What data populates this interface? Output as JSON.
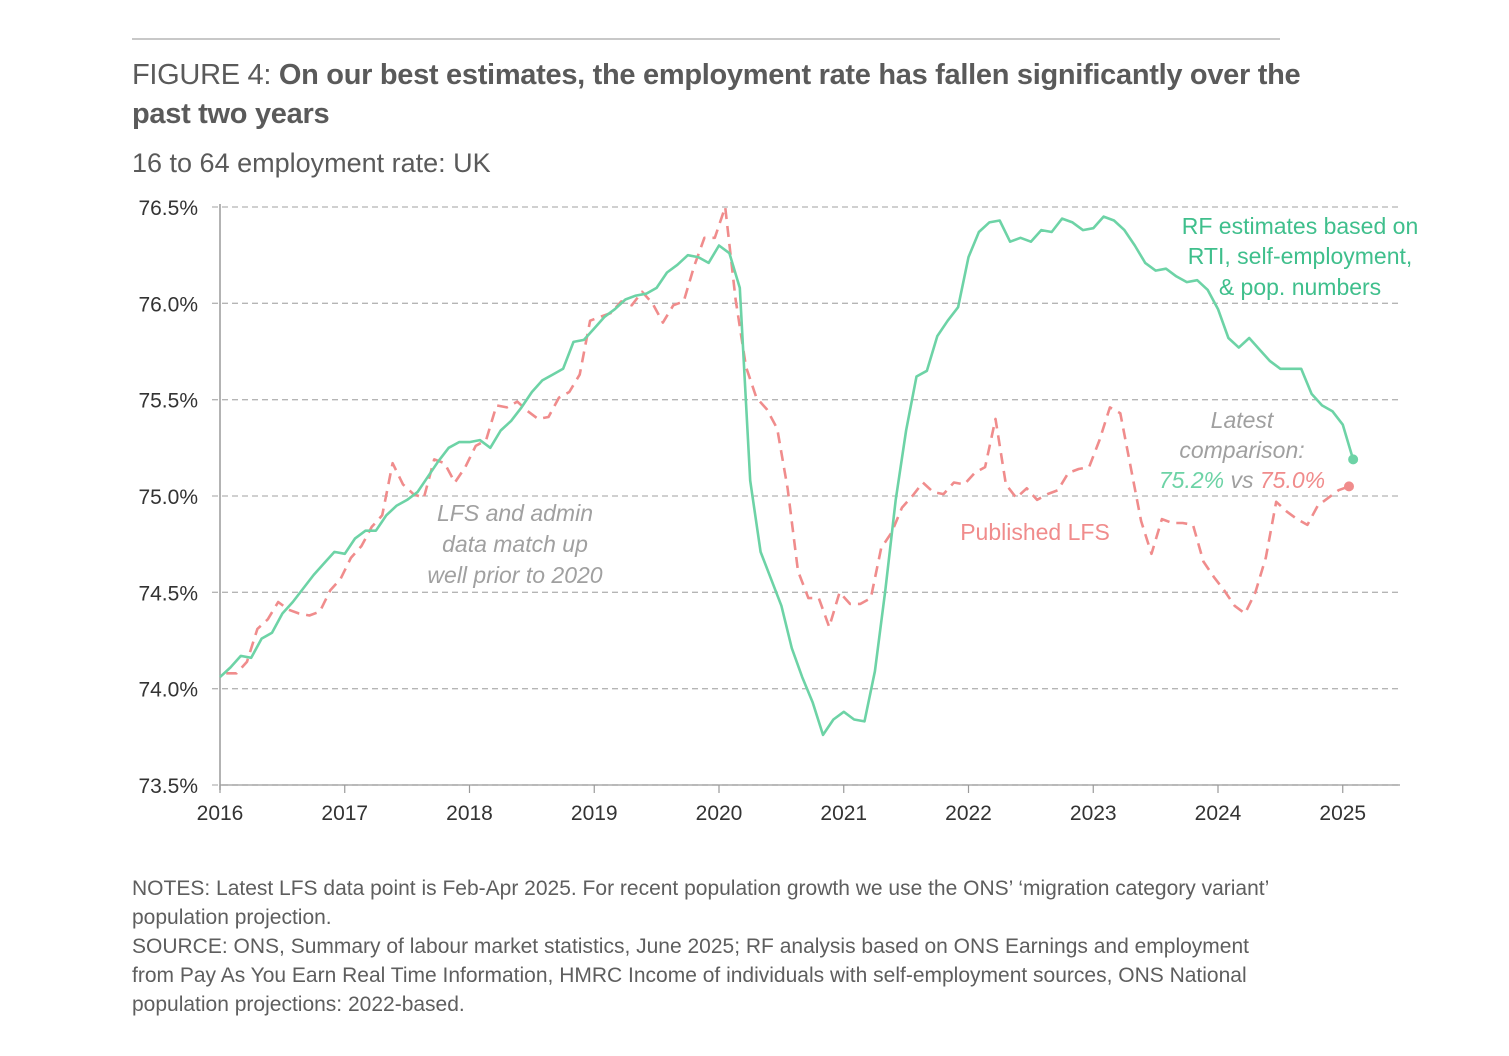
{
  "header": {
    "figure_prefix": "FIGURE 4: ",
    "title": "On our best estimates, the employment rate has fallen significantly over the past two years",
    "subtitle": "16 to 64 employment rate: UK"
  },
  "footer": {
    "notes": "NOTES: Latest LFS data point is Feb-Apr 2025. For recent population growth we use the ONS’ ‘migration category variant’ population projection.",
    "source": "SOURCE: ONS, Summary of labour market statistics, June 2025; RF analysis based on ONS Earnings and employment from Pay As You Earn Real Time Information, HMRC Income of individuals with self-employment sources, ONS National population projections: 2022-based."
  },
  "chart_data": {
    "type": "line",
    "title": "16 to 64 employment rate: UK",
    "xlabel": "",
    "ylabel": "",
    "xlim": [
      2016,
      2025.5
    ],
    "ylim": [
      73.5,
      76.5
    ],
    "x_ticks": [
      2016,
      2017,
      2018,
      2019,
      2020,
      2021,
      2022,
      2023,
      2024,
      2025
    ],
    "x_tick_labels": [
      "2016",
      "2017",
      "2018",
      "2019",
      "2020",
      "2021",
      "2022",
      "2023",
      "2024",
      "2025"
    ],
    "y_ticks": [
      73.5,
      74.0,
      74.5,
      75.0,
      75.5,
      76.0,
      76.5
    ],
    "y_tick_labels": [
      "73.5%",
      "74.0%",
      "74.5%",
      "75.0%",
      "75.5%",
      "76.0%",
      "76.5%"
    ],
    "grid": "horizontal-dashed",
    "colors": {
      "rf": "#6dd3a6",
      "lfs": "#f08c8c",
      "rf_text": "#3fbf8c",
      "annotation": "#a0a0a0",
      "axis": "#9a9a9a",
      "grid": "#b5b5b5"
    },
    "series": [
      {
        "name": "RF estimates based on RTI, self-employment, & pop. numbers",
        "style": "solid",
        "x_start": 2016.0,
        "x_step_months": 1,
        "values": [
          74.06,
          74.11,
          74.17,
          74.16,
          74.26,
          74.29,
          74.39,
          74.45,
          74.52,
          74.59,
          74.65,
          74.71,
          74.7,
          74.78,
          74.82,
          74.82,
          74.9,
          74.95,
          74.98,
          75.02,
          75.1,
          75.18,
          75.25,
          75.28,
          75.28,
          75.29,
          75.25,
          75.34,
          75.39,
          75.46,
          75.54,
          75.6,
          75.63,
          75.66,
          75.8,
          75.81,
          75.87,
          75.93,
          75.97,
          76.02,
          76.04,
          76.05,
          76.08,
          76.16,
          76.2,
          76.25,
          76.24,
          76.21,
          76.3,
          76.26,
          76.08,
          75.08,
          74.71,
          74.57,
          74.43,
          74.21,
          74.06,
          73.93,
          73.76,
          73.84,
          73.88,
          73.84,
          73.83,
          74.09,
          74.51,
          74.98,
          75.34,
          75.62,
          75.65,
          75.83,
          75.91,
          75.98,
          76.24,
          76.37,
          76.42,
          76.43,
          76.32,
          76.34,
          76.32,
          76.38,
          76.37,
          76.44,
          76.42,
          76.38,
          76.39,
          76.45,
          76.43,
          76.38,
          76.3,
          76.21,
          76.17,
          76.18,
          76.14,
          76.11,
          76.12,
          76.07,
          75.97,
          75.82,
          75.77,
          75.82,
          75.76,
          75.7,
          75.66,
          75.66,
          75.66,
          75.53,
          75.47,
          75.44,
          75.37,
          75.19
        ],
        "latest_value": 75.2
      },
      {
        "name": "Published LFS",
        "style": "dashed",
        "x_start": 2016.05,
        "x_step_months": 1,
        "values": [
          74.08,
          74.08,
          74.14,
          74.31,
          74.36,
          74.45,
          74.41,
          74.39,
          74.38,
          74.4,
          74.51,
          74.57,
          74.68,
          74.74,
          74.84,
          74.9,
          75.17,
          75.06,
          75.01,
          74.99,
          75.19,
          75.17,
          75.07,
          75.15,
          75.26,
          75.29,
          75.47,
          75.46,
          75.49,
          75.44,
          75.4,
          75.41,
          75.51,
          75.54,
          75.63,
          75.91,
          75.93,
          75.95,
          76.01,
          75.99,
          76.06,
          76.0,
          75.9,
          75.99,
          76.01,
          76.19,
          76.34,
          76.34,
          76.5,
          76.02,
          75.67,
          75.51,
          75.45,
          75.35,
          75.04,
          74.61,
          74.47,
          74.47,
          74.32,
          74.5,
          74.44,
          74.44,
          74.47,
          74.73,
          74.81,
          74.94,
          75.0,
          75.07,
          75.02,
          75.01,
          75.07,
          75.06,
          75.12,
          75.15,
          75.4,
          75.06,
          74.99,
          75.04,
          74.98,
          75.01,
          75.03,
          75.12,
          75.14,
          75.15,
          75.29,
          75.46,
          75.43,
          75.15,
          74.87,
          74.7,
          74.88,
          74.86,
          74.86,
          74.85,
          74.66,
          74.58,
          74.51,
          74.43,
          74.39,
          74.5,
          74.68,
          74.97,
          74.92,
          74.88,
          74.85,
          74.95,
          74.99,
          75.03,
          75.05
        ],
        "latest_value": 75.0
      }
    ],
    "annotations": [
      {
        "id": "rf-label",
        "lines": [
          "RF estimates based on",
          "RTI, self-employment,",
          "& pop. numbers"
        ]
      },
      {
        "id": "lfs-label",
        "lines": [
          "Published LFS"
        ]
      },
      {
        "id": "match-note",
        "lines": [
          "LFS and admin",
          "data match up",
          "well prior to 2020"
        ]
      },
      {
        "id": "latest-note",
        "lines": [
          "Latest",
          "comparison:"
        ],
        "rf_value": "75.2%",
        "vs": " vs ",
        "lfs_value": "75.0%"
      }
    ]
  }
}
